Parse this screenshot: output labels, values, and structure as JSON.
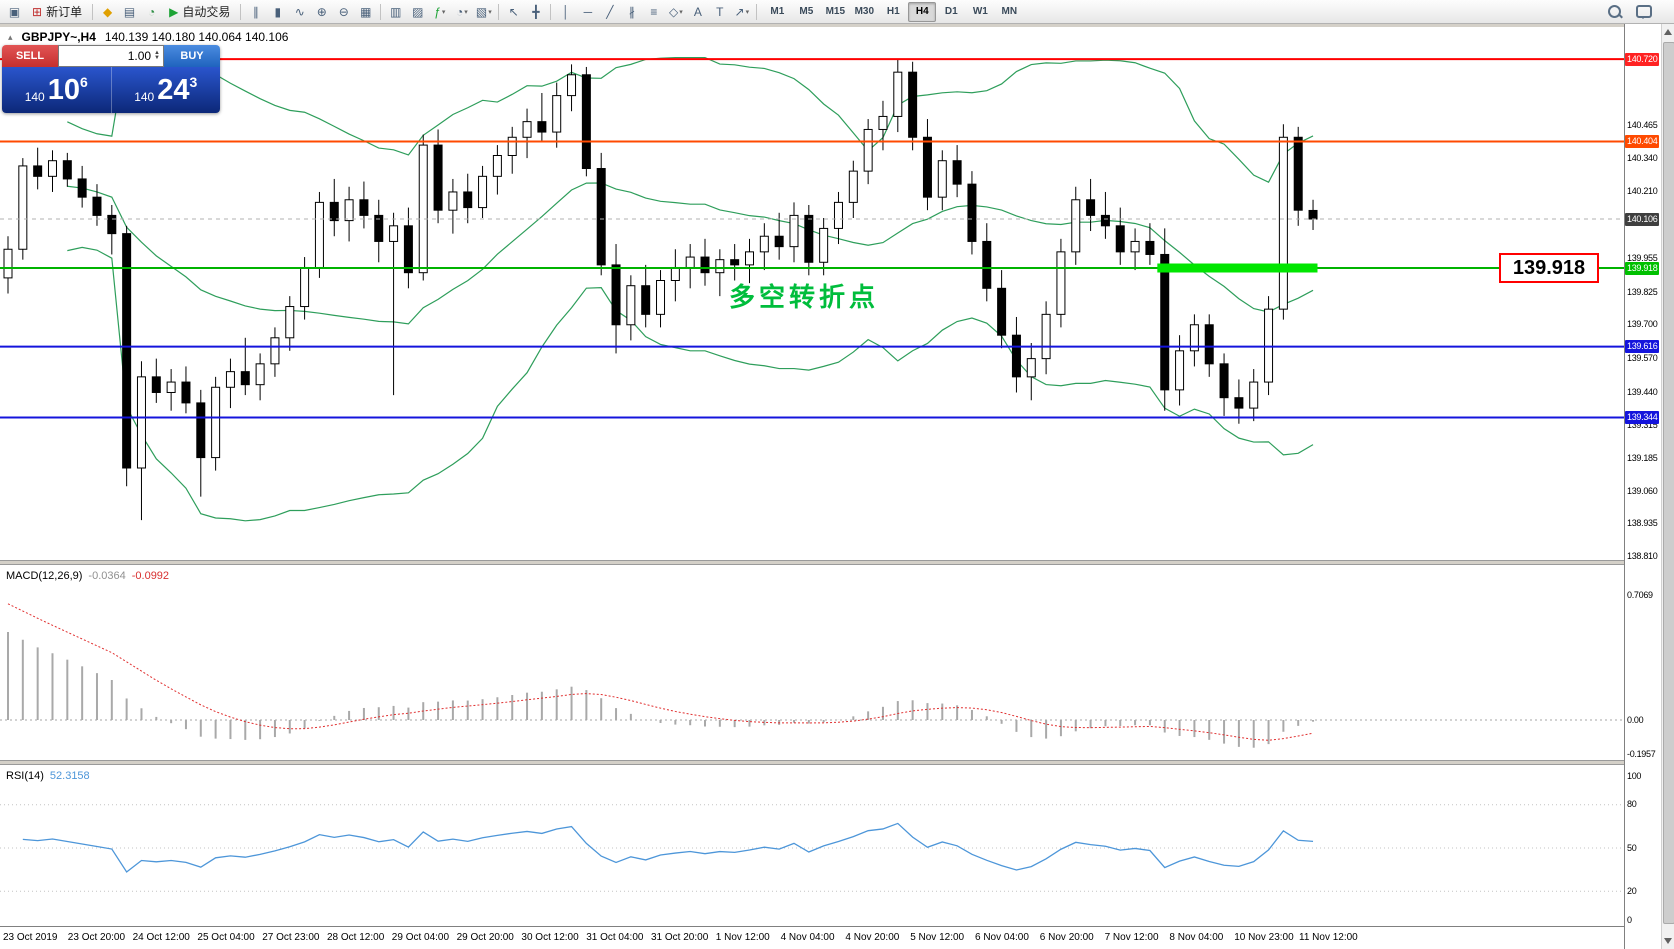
{
  "toolbar": {
    "dropdown_glyph": "▾",
    "new_order": "新订单",
    "auto_trading": "自动交易",
    "timeframes": [
      "M1",
      "M5",
      "M15",
      "M30",
      "H1",
      "H4",
      "D1",
      "W1",
      "MN"
    ],
    "active_timeframe": "H4",
    "items": [
      {
        "t": "icon",
        "name": "window-icon",
        "glyph": "▣"
      },
      {
        "t": "btn",
        "name": "new-order-button",
        "glyph": "⊞",
        "color": "#c03030",
        "label": "新订单"
      },
      {
        "t": "sep"
      },
      {
        "t": "icon",
        "name": "metaquotes-icon",
        "glyph": "◆",
        "color": "#e0a000"
      },
      {
        "t": "icon",
        "name": "market-watch-icon",
        "glyph": "▤"
      },
      {
        "t": "icon",
        "name": "refresh-icon",
        "glyph": "◔",
        "color": "#2f8f46"
      },
      {
        "t": "btn",
        "name": "auto-trading-button",
        "glyph": "▶",
        "color": "#1da336",
        "label": "自动交易"
      },
      {
        "t": "sep"
      },
      {
        "t": "icon",
        "name": "bar-chart-icon",
        "glyph": "∥"
      },
      {
        "t": "icon",
        "name": "candlestick-chart-icon",
        "glyph": "▮"
      },
      {
        "t": "icon",
        "name": "line-chart-icon",
        "glyph": "∿"
      },
      {
        "t": "icon",
        "name": "zoom-in-icon",
        "glyph": "⊕"
      },
      {
        "t": "icon",
        "name": "zoom-out-icon",
        "glyph": "⊖"
      },
      {
        "t": "icon",
        "name": "tile-windows-icon",
        "glyph": "▦"
      },
      {
        "t": "sep"
      },
      {
        "t": "icon",
        "name": "arrange-charts-icon",
        "glyph": "▥"
      },
      {
        "t": "icon",
        "name": "chart-shift-icon",
        "glyph": "▨"
      },
      {
        "t": "icon",
        "name": "indicators-icon",
        "glyph": "ƒ",
        "color": "#1da336",
        "dd": true
      },
      {
        "t": "icon",
        "name": "periods-icon",
        "glyph": "◔",
        "dd": true
      },
      {
        "t": "icon",
        "name": "templates-icon",
        "glyph": "▧",
        "dd": true
      },
      {
        "t": "sep"
      },
      {
        "t": "icon",
        "name": "cursor-icon",
        "glyph": "↖"
      },
      {
        "t": "icon",
        "name": "crosshair-icon",
        "glyph": "╋"
      },
      {
        "t": "sep"
      },
      {
        "t": "icon",
        "name": "vertical-line-icon",
        "glyph": "│"
      },
      {
        "t": "icon",
        "name": "horizontal-line-icon",
        "glyph": "─"
      },
      {
        "t": "icon",
        "name": "trendline-icon",
        "glyph": "╱"
      },
      {
        "t": "icon",
        "name": "channel-icon",
        "glyph": "∦"
      },
      {
        "t": "icon",
        "name": "fibonacci-icon",
        "glyph": "≡"
      },
      {
        "t": "icon",
        "name": "shapes-icon",
        "glyph": "◇",
        "dd": true
      },
      {
        "t": "icon",
        "name": "text-icon",
        "glyph": "A"
      },
      {
        "t": "icon",
        "name": "text-label-icon",
        "glyph": "T"
      },
      {
        "t": "icon",
        "name": "arrows-icon",
        "glyph": "↗",
        "dd": true
      },
      {
        "t": "sep"
      },
      {
        "t": "tf"
      }
    ]
  },
  "chart": {
    "symbol_title": "GBPJPY~,H4",
    "ohlc_text": "140.139 140.180 140.064 140.106",
    "annotation": "多空转折点",
    "price_tag": "139.918"
  },
  "trade_panel": {
    "sell_label": "SELL",
    "buy_label": "BUY",
    "volume": "1.00",
    "bid": {
      "prefix": "140",
      "big": "10",
      "pip": "6"
    },
    "ask": {
      "prefix": "140",
      "big": "24",
      "pip": "3"
    }
  },
  "macd": {
    "label": "MACD(12,26,9)",
    "value_main": "-0.0364",
    "value_signal": "-0.0992",
    "axis": [
      "0.7069",
      "0.00",
      "-0.1957"
    ]
  },
  "rsi": {
    "label": "RSI(14)",
    "value": "52.3158",
    "axis": [
      "100",
      "80",
      "50",
      "20",
      "0"
    ]
  },
  "chart_data": {
    "type": "candlestick",
    "symbol": "GBPJPY",
    "period": "H4",
    "current_bar": {
      "open": 140.139,
      "high": 140.18,
      "low": 140.064,
      "close": 140.106
    },
    "price_axis_range": [
      138.797,
      140.832
    ],
    "colors": {
      "bollinger": "#2e9e5b",
      "bull_candle": "#ffffff",
      "bear_candle": "#000000",
      "macd_histogram": "#a9a9a9",
      "macd_signal": "#e02f2f",
      "rsi_line": "#4d96d9",
      "annotation_green": "#00bd3c",
      "highlight_green": "#00e600"
    },
    "indicators": {
      "bollinger_bands": {
        "period": 20,
        "deviation": 2
      },
      "macd": {
        "fast": 12,
        "slow": 26,
        "signal": 9,
        "current_main": -0.0364,
        "current_signal": -0.0992,
        "axis_values": [
          0.7069,
          0.0,
          -0.1957
        ]
      },
      "rsi": {
        "period": 14,
        "current": 52.3158,
        "levels": [
          100,
          80,
          50,
          20,
          0
        ]
      }
    },
    "hlines": [
      {
        "price": 140.72,
        "color": "#ff0000",
        "width": 2,
        "label_bg": "#ff2222"
      },
      {
        "price": 140.404,
        "color": "#ff4a00",
        "width": 2,
        "label_bg": "#ff4a00"
      },
      {
        "price": 139.918,
        "color": "#00b300",
        "width": 2,
        "label_bg": "#00c000"
      },
      {
        "price": 139.616,
        "color": "#1414dc",
        "width": 2,
        "label_bg": "#1414dc"
      },
      {
        "price": 139.344,
        "color": "#1414dc",
        "width": 2,
        "label_bg": "#1414dc"
      },
      {
        "price": 140.106,
        "color": "#b0b0b0",
        "width": 1,
        "dashed": true,
        "label_bg": "#3f3f3f"
      }
    ],
    "highlight_segment": {
      "price": 139.918,
      "from_bar": 77.5,
      "to_bar": 88.3
    },
    "price_axis_ticks": [
      "140.465",
      "140.340",
      "140.210",
      "139.955",
      "139.825",
      "139.700",
      "139.570",
      "139.440",
      "139.315",
      "139.185",
      "139.060",
      "138.935",
      "138.810"
    ],
    "time_axis_labels": [
      "23 Oct 2019",
      "23 Oct 20:00",
      "24 Oct 12:00",
      "25 Oct 04:00",
      "27 Oct 23:00",
      "28 Oct 12:00",
      "29 Oct 04:00",
      "29 Oct 20:00",
      "30 Oct 12:00",
      "31 Oct 04:00",
      "31 Oct 20:00",
      "1 Nov 12:00",
      "4 Nov 04:00",
      "4 Nov 20:00",
      "5 Nov 12:00",
      "6 Nov 04:00",
      "6 Nov 20:00",
      "7 Nov 12:00",
      "8 Nov 04:00",
      "10 Nov 23:00",
      "11 Nov 12:00"
    ],
    "candles_ohlc": [
      [
        139.88,
        140.04,
        139.82,
        139.99
      ],
      [
        139.99,
        140.34,
        139.95,
        140.31
      ],
      [
        140.31,
        140.38,
        140.22,
        140.27
      ],
      [
        140.27,
        140.37,
        140.21,
        140.33
      ],
      [
        140.33,
        140.36,
        140.23,
        140.26
      ],
      [
        140.26,
        140.31,
        140.15,
        140.19
      ],
      [
        140.19,
        140.24,
        140.08,
        140.12
      ],
      [
        140.12,
        140.16,
        139.97,
        140.05
      ],
      [
        140.05,
        140.08,
        139.08,
        139.15
      ],
      [
        139.15,
        139.56,
        138.95,
        139.5
      ],
      [
        139.5,
        139.57,
        139.4,
        139.44
      ],
      [
        139.44,
        139.53,
        139.37,
        139.48
      ],
      [
        139.48,
        139.54,
        139.36,
        139.4
      ],
      [
        139.4,
        139.45,
        139.04,
        139.19
      ],
      [
        139.19,
        139.5,
        139.14,
        139.46
      ],
      [
        139.46,
        139.57,
        139.38,
        139.52
      ],
      [
        139.52,
        139.65,
        139.43,
        139.47
      ],
      [
        139.47,
        139.59,
        139.41,
        139.55
      ],
      [
        139.55,
        139.69,
        139.5,
        139.65
      ],
      [
        139.65,
        139.81,
        139.6,
        139.77
      ],
      [
        139.77,
        139.96,
        139.72,
        139.92
      ],
      [
        139.92,
        140.21,
        139.88,
        140.17
      ],
      [
        140.17,
        140.26,
        140.04,
        140.1
      ],
      [
        140.1,
        140.23,
        140.02,
        140.18
      ],
      [
        140.18,
        140.25,
        140.07,
        140.12
      ],
      [
        140.12,
        140.18,
        139.94,
        140.02
      ],
      [
        140.02,
        140.13,
        139.43,
        140.08
      ],
      [
        140.08,
        140.15,
        139.84,
        139.9
      ],
      [
        139.9,
        140.43,
        139.87,
        140.39
      ],
      [
        140.39,
        140.45,
        140.09,
        140.14
      ],
      [
        140.14,
        140.26,
        140.05,
        140.21
      ],
      [
        140.21,
        140.28,
        140.09,
        140.15
      ],
      [
        140.15,
        140.31,
        140.11,
        140.27
      ],
      [
        140.27,
        140.39,
        140.2,
        140.35
      ],
      [
        140.35,
        140.46,
        140.28,
        140.42
      ],
      [
        140.42,
        140.53,
        140.34,
        140.48
      ],
      [
        140.48,
        140.59,
        140.4,
        140.44
      ],
      [
        140.44,
        140.63,
        140.38,
        140.58
      ],
      [
        140.58,
        140.7,
        140.52,
        140.66
      ],
      [
        140.66,
        140.69,
        140.27,
        140.3
      ],
      [
        140.3,
        140.36,
        139.89,
        139.93
      ],
      [
        139.93,
        140.01,
        139.59,
        139.7
      ],
      [
        139.7,
        139.89,
        139.64,
        139.85
      ],
      [
        139.85,
        139.93,
        139.69,
        139.74
      ],
      [
        139.74,
        139.91,
        139.69,
        139.87
      ],
      [
        139.87,
        139.99,
        139.79,
        139.92
      ],
      [
        139.92,
        140.01,
        139.84,
        139.96
      ],
      [
        139.96,
        140.03,
        139.85,
        139.9
      ],
      [
        139.9,
        139.99,
        139.81,
        139.95
      ],
      [
        139.95,
        140.01,
        139.87,
        139.93
      ],
      [
        139.93,
        140.03,
        139.86,
        139.98
      ],
      [
        139.98,
        140.09,
        139.91,
        140.04
      ],
      [
        140.04,
        140.13,
        139.95,
        140.0
      ],
      [
        140.0,
        140.17,
        139.94,
        140.12
      ],
      [
        140.12,
        140.16,
        139.89,
        139.94
      ],
      [
        139.94,
        140.11,
        139.89,
        140.07
      ],
      [
        140.07,
        140.21,
        140.01,
        140.17
      ],
      [
        140.17,
        140.33,
        140.11,
        140.29
      ],
      [
        140.29,
        140.49,
        140.24,
        140.45
      ],
      [
        140.45,
        140.56,
        140.37,
        140.5
      ],
      [
        140.5,
        140.72,
        140.44,
        140.67
      ],
      [
        140.67,
        140.71,
        140.37,
        140.42
      ],
      [
        140.42,
        140.49,
        140.14,
        140.19
      ],
      [
        140.19,
        140.37,
        140.14,
        140.33
      ],
      [
        140.33,
        140.39,
        140.19,
        140.24
      ],
      [
        140.24,
        140.29,
        139.97,
        140.02
      ],
      [
        140.02,
        140.09,
        139.79,
        139.84
      ],
      [
        139.84,
        139.91,
        139.61,
        139.66
      ],
      [
        139.66,
        139.73,
        139.44,
        139.5
      ],
      [
        139.5,
        139.63,
        139.41,
        139.57
      ],
      [
        139.57,
        139.79,
        139.51,
        139.74
      ],
      [
        139.74,
        140.03,
        139.69,
        139.98
      ],
      [
        139.98,
        140.23,
        139.93,
        140.18
      ],
      [
        140.18,
        140.26,
        140.06,
        140.12
      ],
      [
        140.12,
        140.21,
        140.03,
        140.08
      ],
      [
        140.08,
        140.15,
        139.93,
        139.98
      ],
      [
        139.98,
        140.07,
        139.91,
        140.02
      ],
      [
        140.02,
        140.09,
        139.93,
        139.97
      ],
      [
        139.97,
        140.07,
        139.37,
        139.45
      ],
      [
        139.45,
        139.66,
        139.39,
        139.6
      ],
      [
        139.6,
        139.74,
        139.54,
        139.7
      ],
      [
        139.7,
        139.74,
        139.5,
        139.55
      ],
      [
        139.55,
        139.59,
        139.35,
        139.42
      ],
      [
        139.42,
        139.49,
        139.32,
        139.38
      ],
      [
        139.38,
        139.53,
        139.33,
        139.48
      ],
      [
        139.48,
        139.81,
        139.43,
        139.76
      ],
      [
        139.76,
        140.47,
        139.72,
        140.42
      ],
      [
        140.42,
        140.46,
        140.08,
        140.14
      ],
      [
        140.139,
        140.18,
        140.064,
        140.106
      ]
    ]
  }
}
